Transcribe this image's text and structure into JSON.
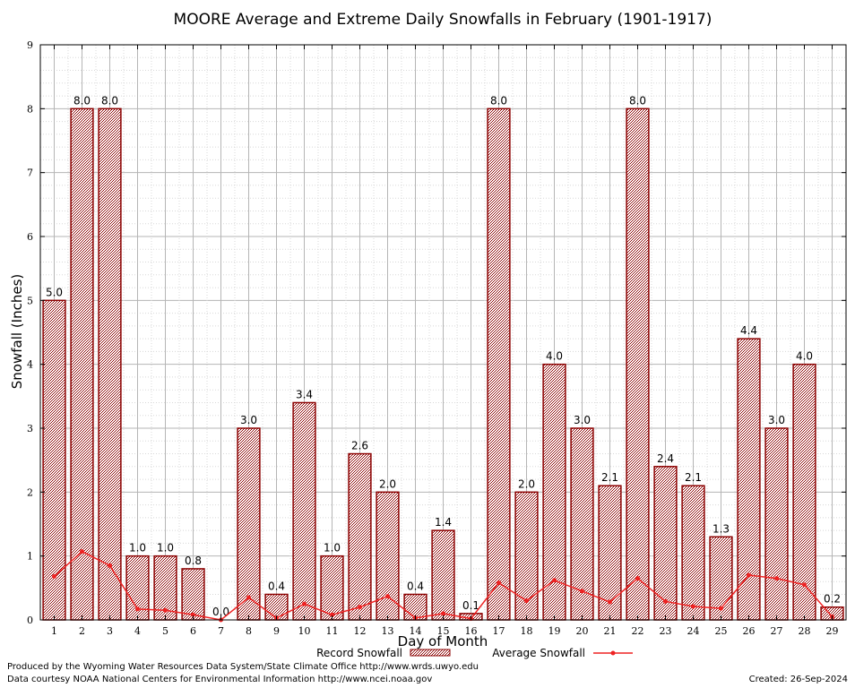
{
  "chart_data": {
    "type": "bar",
    "title": "MOORE Average and Extreme Daily Snowfalls in February (1901-1917)",
    "xlabel": "Day of Month",
    "ylabel": "Snowfall (Inches)",
    "ylim": [
      0,
      9
    ],
    "yticks": [
      "0",
      "1",
      "2",
      "3",
      "4",
      "5",
      "6",
      "7",
      "8",
      "9"
    ],
    "categories": [
      "1",
      "2",
      "3",
      "4",
      "5",
      "6",
      "7",
      "8",
      "9",
      "10",
      "11",
      "12",
      "13",
      "14",
      "15",
      "16",
      "17",
      "18",
      "19",
      "20",
      "21",
      "22",
      "23",
      "24",
      "25",
      "26",
      "27",
      "28",
      "29"
    ],
    "series": [
      {
        "name": "Record Snowfall",
        "kind": "bar",
        "color": "#8b0000",
        "values": [
          5.0,
          8.0,
          8.0,
          1.0,
          1.0,
          0.8,
          0.0,
          3.0,
          0.4,
          3.4,
          1.0,
          2.6,
          2.0,
          0.4,
          1.4,
          0.1,
          8.0,
          2.0,
          4.0,
          3.0,
          2.1,
          8.0,
          2.4,
          2.1,
          1.3,
          4.4,
          3.0,
          4.0,
          0.2
        ],
        "labels": [
          "5.0",
          "8.0",
          "8.0",
          "1.0",
          "1.0",
          "0.8",
          "0.0",
          "3.0",
          "0.4",
          "3.4",
          "1.0",
          "2.6",
          "2.0",
          "0.4",
          "1.4",
          "0.1",
          "8.0",
          "2.0",
          "4.0",
          "3.0",
          "2.1",
          "8.0",
          "2.4",
          "2.1",
          "1.3",
          "4.4",
          "3.0",
          "4.0",
          "0.2"
        ]
      },
      {
        "name": "Average Snowfall",
        "kind": "line",
        "color": "#ee2222",
        "values": [
          0.68,
          1.07,
          0.85,
          0.17,
          0.15,
          0.08,
          0.0,
          0.35,
          0.03,
          0.25,
          0.08,
          0.2,
          0.37,
          0.03,
          0.1,
          0.02,
          0.58,
          0.3,
          0.62,
          0.45,
          0.28,
          0.65,
          0.29,
          0.21,
          0.18,
          0.7,
          0.65,
          0.55,
          0.05
        ]
      }
    ],
    "legend": [
      "Record Snowfall",
      "Average Snowfall"
    ],
    "grid": true
  },
  "footer": {
    "producer": "Produced by the Wyoming Water Resources Data System/State Climate Office http://www.wrds.uwyo.edu",
    "courtesy": "Data courtesy NOAA National Centers for Environmental Information http://www.ncei.noaa.gov",
    "created": "Created:  26-Sep-2024"
  }
}
